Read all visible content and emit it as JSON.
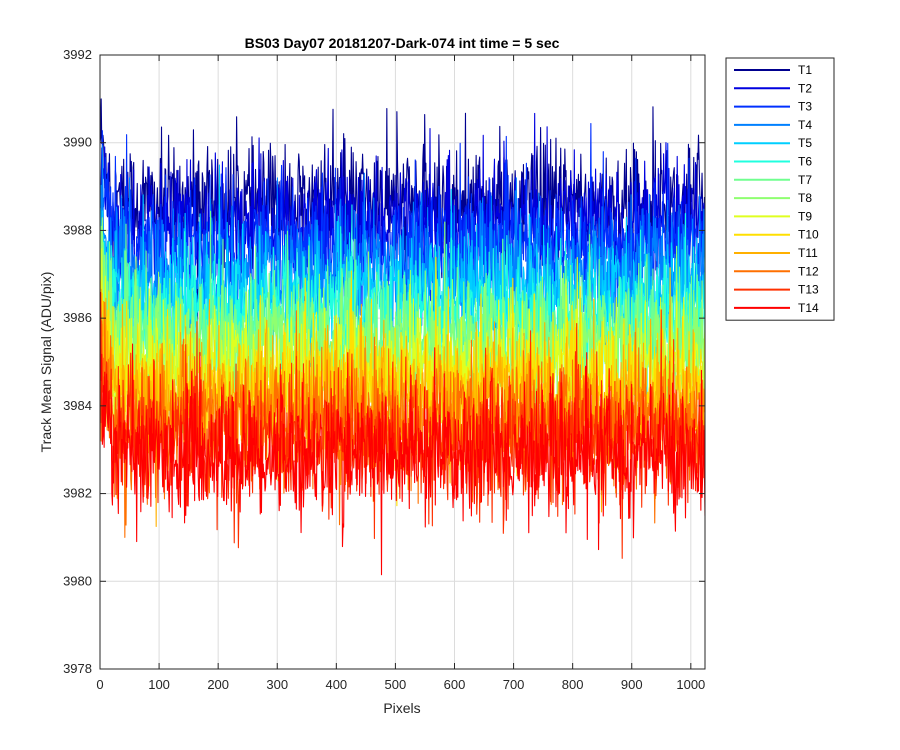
{
  "chart_data": {
    "type": "line",
    "title": "BS03 Day07 20181207-Dark-074 int time = 5 sec",
    "xlabel": "Pixels",
    "ylabel": "Track Mean Signal (ADU/pix)",
    "xlim": [
      0,
      1024
    ],
    "ylim": [
      3978,
      3992
    ],
    "xticks": [
      0,
      100,
      200,
      300,
      400,
      500,
      600,
      700,
      800,
      900,
      1000
    ],
    "yticks": [
      3978,
      3980,
      3982,
      3984,
      3986,
      3988,
      3990,
      3992
    ],
    "grid": true,
    "legend_position": "outside-right-top",
    "series": [
      {
        "name": "T1",
        "color": "#00008f",
        "mean": 3988.6,
        "amplitude": 0.95
      },
      {
        "name": "T2",
        "color": "#0000df",
        "mean": 3988.1,
        "amplitude": 0.95
      },
      {
        "name": "T3",
        "color": "#0030ff",
        "mean": 3987.6,
        "amplitude": 0.95
      },
      {
        "name": "T4",
        "color": "#0080ff",
        "mean": 3987.0,
        "amplitude": 0.95
      },
      {
        "name": "T5",
        "color": "#00cfff",
        "mean": 3986.5,
        "amplitude": 0.95
      },
      {
        "name": "T6",
        "color": "#20ffdf",
        "mean": 3986.0,
        "amplitude": 0.95
      },
      {
        "name": "T7",
        "color": "#70ff8f",
        "mean": 3985.6,
        "amplitude": 0.95
      },
      {
        "name": "T8",
        "color": "#8fff70",
        "mean": 3985.2,
        "amplitude": 0.95
      },
      {
        "name": "T9",
        "color": "#dfff20",
        "mean": 3984.8,
        "amplitude": 0.95
      },
      {
        "name": "T10",
        "color": "#ffdf00",
        "mean": 3984.4,
        "amplitude": 1.0
      },
      {
        "name": "T11",
        "color": "#ffb000",
        "mean": 3984.0,
        "amplitude": 1.0
      },
      {
        "name": "T12",
        "color": "#ff7000",
        "mean": 3983.6,
        "amplitude": 1.0
      },
      {
        "name": "T13",
        "color": "#ff3000",
        "mean": 3983.2,
        "amplitude": 1.0
      },
      {
        "name": "T14",
        "color": "#ff0000",
        "mean": 3982.9,
        "amplitude": 1.0
      }
    ],
    "samples": 1024
  }
}
